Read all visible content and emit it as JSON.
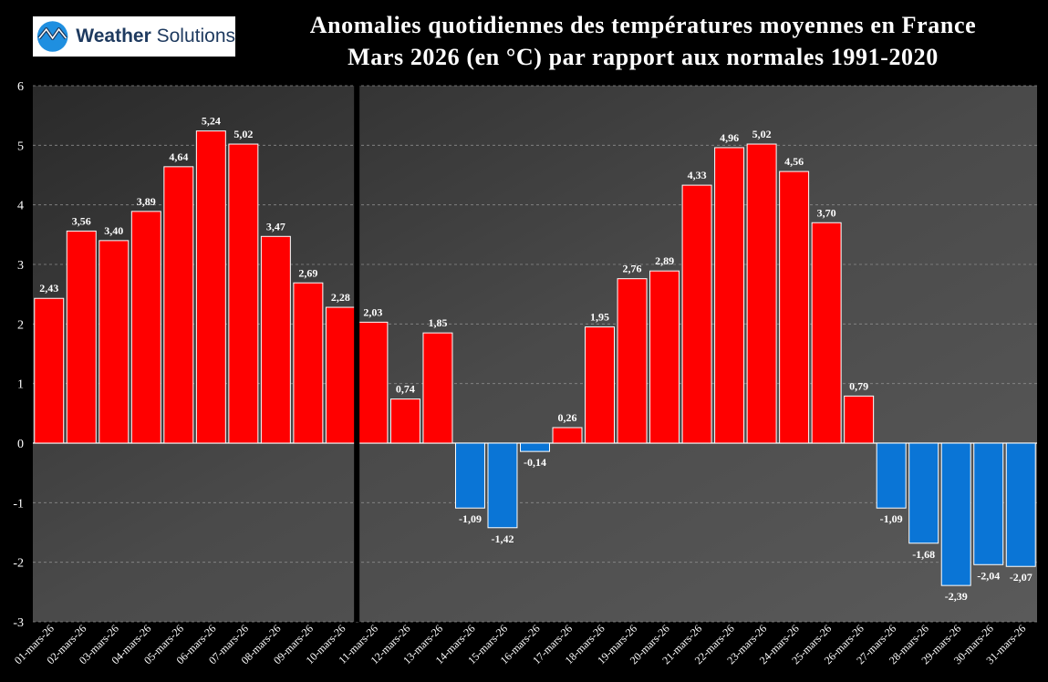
{
  "logo": {
    "brand_bold": "Weather",
    "brand_rest": "Solutions"
  },
  "title_line1": "Anomalies quotidiennes des températures moyennes en France",
  "title_line2": "Mars 2026 (en °C) par rapport aux normales 1991-2020",
  "chart_data": {
    "type": "bar",
    "title": "Anomalies quotidiennes des températures moyennes en France Mars 2026 (en °C) par rapport aux normales 1991-2020",
    "xlabel": "",
    "ylabel": "",
    "ylim": [
      -3,
      6
    ],
    "yticks": [
      -3,
      -2,
      -1,
      0,
      1,
      2,
      3,
      4,
      5,
      6
    ],
    "grid": true,
    "legend": "none",
    "positive_color": "#ff0000",
    "negative_color": "#0a75d6",
    "separator_after_category": "10-mars-26",
    "categories": [
      "01-mars-26",
      "02-mars-26",
      "03-mars-26",
      "04-mars-26",
      "05-mars-26",
      "06-mars-26",
      "07-mars-26",
      "08-mars-26",
      "09-mars-26",
      "10-mars-26",
      "11-mars-26",
      "12-mars-26",
      "13-mars-26",
      "14-mars-26",
      "15-mars-26",
      "16-mars-26",
      "17-mars-26",
      "18-mars-26",
      "19-mars-26",
      "20-mars-26",
      "21-mars-26",
      "22-mars-26",
      "23-mars-26",
      "24-mars-26",
      "25-mars-26",
      "26-mars-26",
      "27-mars-26",
      "28-mars-26",
      "29-mars-26",
      "30-mars-26",
      "31-mars-26"
    ],
    "values": [
      2.43,
      3.56,
      3.4,
      3.89,
      4.64,
      5.24,
      5.02,
      3.47,
      2.69,
      2.28,
      2.03,
      0.74,
      1.85,
      -1.09,
      -1.42,
      -0.14,
      0.26,
      1.95,
      2.76,
      2.89,
      4.33,
      4.96,
      5.02,
      4.56,
      3.7,
      0.79,
      -1.09,
      -1.68,
      -2.39,
      -2.04,
      -2.07
    ],
    "labels": [
      "2,43",
      "3,56",
      "3,40",
      "3,89",
      "4,64",
      "5,24",
      "5,02",
      "3,47",
      "2,69",
      "2,28",
      "2,03",
      "0,74",
      "1,85",
      "-1,09",
      "-1,42",
      "-0,14",
      "0,26",
      "1,95",
      "2,76",
      "2,89",
      "4,33",
      "4,96",
      "5,02",
      "4,56",
      "3,70",
      "0,79",
      "-1,09",
      "-1,68",
      "-2,39",
      "-2,04",
      "-2,07"
    ]
  }
}
